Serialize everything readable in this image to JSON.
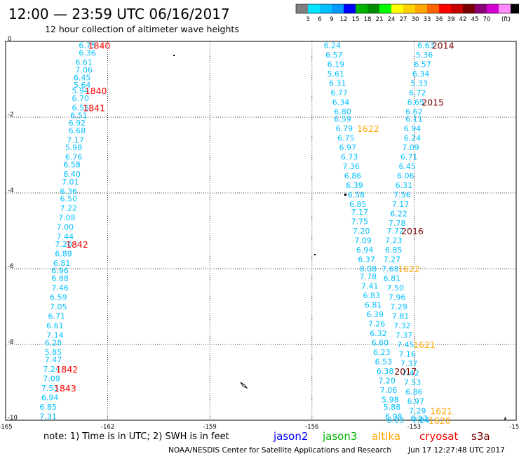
{
  "header": {
    "title": "12:00 — 23:59 UTC 06/16/2017",
    "subtitle": "12 hour collection of altimeter wave heights"
  },
  "legend": {
    "colors": [
      "#808080",
      "#00e5ff",
      "#00bfff",
      "#0099ff",
      "#0000ff",
      "#00b400",
      "#008c00",
      "#00ff00",
      "#ffff00",
      "#ffd200",
      "#ffa500",
      "#ff6400",
      "#ff0000",
      "#c80000",
      "#780000",
      "#8c0078",
      "#d200d2",
      "#ff8cff",
      "#000000"
    ],
    "labels": [
      "3",
      "6",
      "9",
      "12",
      "15",
      "18",
      "21",
      "24",
      "27",
      "30",
      "33",
      "36",
      "39",
      "42",
      "45",
      "70",
      "(ft)"
    ]
  },
  "note": "note:  1) Time is in UTC;  2) SWH is in feet",
  "satellites": [
    {
      "name": "jason2",
      "color": "#0000ff"
    },
    {
      "name": "jason3",
      "color": "#00b400"
    },
    {
      "name": "altika",
      "color": "#ffa500"
    },
    {
      "name": "cryosat",
      "color": "#ff0000"
    },
    {
      "name": "s3a",
      "color": "#780000"
    }
  ],
  "footer": {
    "source": "NOAA/NESDIS Center for Satellite Applications and Research",
    "timestamp": "Jun 17 12:27:48 UTC 2017"
  },
  "chart_data": {
    "type": "scatter",
    "xlim": [
      -165,
      -150
    ],
    "ylim": [
      -10,
      0
    ],
    "x_ticks": [
      -165,
      -162,
      -159,
      -156,
      -153,
      -150
    ],
    "x_tick_labels": [
      "-165",
      "-162",
      "-159",
      "-156",
      "-153",
      "-150"
    ],
    "y_ticks": [
      0,
      -2,
      -4,
      -6,
      -8,
      -10
    ],
    "y_tick_labels": [
      "0",
      "-2",
      "-4",
      "-6",
      "-8",
      "-10"
    ],
    "grid": true,
    "units": "ft",
    "series": [
      {
        "color": "#00bfff",
        "points": [
          {
            "x": -162.6,
            "y": -0.1,
            "v": "6.75"
          },
          {
            "x": -162.6,
            "y": -0.3,
            "v": "6.36"
          },
          {
            "x": -162.7,
            "y": -0.55,
            "v": "6.61"
          },
          {
            "x": -162.7,
            "y": -0.75,
            "v": "7.06"
          },
          {
            "x": -162.75,
            "y": -0.95,
            "v": "6.45"
          },
          {
            "x": -162.75,
            "y": -1.15,
            "v": "5.64"
          },
          {
            "x": -162.8,
            "y": -1.3,
            "v": "5.94"
          },
          {
            "x": -162.8,
            "y": -1.5,
            "v": "6.70"
          },
          {
            "x": -162.8,
            "y": -1.75,
            "v": "6.55"
          },
          {
            "x": -162.85,
            "y": -1.95,
            "v": "6.51"
          },
          {
            "x": -162.9,
            "y": -2.15,
            "v": "6.92"
          },
          {
            "x": -162.9,
            "y": -2.35,
            "v": "6.68"
          },
          {
            "x": -162.95,
            "y": -2.6,
            "v": "7.17"
          },
          {
            "x": -163.0,
            "y": -2.8,
            "v": "5.98"
          },
          {
            "x": -163.0,
            "y": -3.05,
            "v": "6.76"
          },
          {
            "x": -163.05,
            "y": -3.25,
            "v": "6.58"
          },
          {
            "x": -163.05,
            "y": -3.5,
            "v": "6.40"
          },
          {
            "x": -163.1,
            "y": -3.7,
            "v": "7.01"
          },
          {
            "x": -163.15,
            "y": -3.95,
            "v": "6.36"
          },
          {
            "x": -163.15,
            "y": -4.15,
            "v": "6.50"
          },
          {
            "x": -163.15,
            "y": -4.4,
            "v": "7.22"
          },
          {
            "x": -163.2,
            "y": -4.65,
            "v": "7.08"
          },
          {
            "x": -163.25,
            "y": -4.9,
            "v": "7.00"
          },
          {
            "x": -163.25,
            "y": -5.15,
            "v": "7.44"
          },
          {
            "x": -163.3,
            "y": -5.35,
            "v": "7.20"
          },
          {
            "x": -163.3,
            "y": -5.6,
            "v": "6.89"
          },
          {
            "x": -163.35,
            "y": -5.85,
            "v": "6.81"
          },
          {
            "x": -163.4,
            "y": -6.05,
            "v": "6.96"
          },
          {
            "x": -163.4,
            "y": -6.25,
            "v": "6.88"
          },
          {
            "x": -163.4,
            "y": -6.5,
            "v": "7.46"
          },
          {
            "x": -163.45,
            "y": -6.75,
            "v": "6.59"
          },
          {
            "x": -163.45,
            "y": -7.0,
            "v": "7.05"
          },
          {
            "x": -163.5,
            "y": -7.25,
            "v": "6.71"
          },
          {
            "x": -163.55,
            "y": -7.5,
            "v": "6.61"
          },
          {
            "x": -163.55,
            "y": -7.75,
            "v": "7.14"
          },
          {
            "x": -163.6,
            "y": -7.95,
            "v": "6.28"
          },
          {
            "x": -163.6,
            "y": -8.2,
            "v": "5.85"
          },
          {
            "x": -163.6,
            "y": -8.4,
            "v": "7.47"
          },
          {
            "x": -163.65,
            "y": -8.65,
            "v": "7.24"
          },
          {
            "x": -163.65,
            "y": -8.9,
            "v": "7.09"
          },
          {
            "x": -163.7,
            "y": -9.15,
            "v": "7.53"
          },
          {
            "x": -163.7,
            "y": -9.4,
            "v": "6.94"
          },
          {
            "x": -163.75,
            "y": -9.65,
            "v": "6.85"
          },
          {
            "x": -163.75,
            "y": -9.9,
            "v": "7.31"
          },
          {
            "x": -155.4,
            "y": -0.1,
            "v": "6.24"
          },
          {
            "x": -155.35,
            "y": -0.35,
            "v": "6.57"
          },
          {
            "x": -155.3,
            "y": -0.6,
            "v": "6.19"
          },
          {
            "x": -155.3,
            "y": -0.85,
            "v": "5.61"
          },
          {
            "x": -155.25,
            "y": -1.1,
            "v": "6.31"
          },
          {
            "x": -155.2,
            "y": -1.35,
            "v": "6.77"
          },
          {
            "x": -155.15,
            "y": -1.6,
            "v": "6.34"
          },
          {
            "x": -155.1,
            "y": -1.85,
            "v": "6.80"
          },
          {
            "x": -155.1,
            "y": -2.05,
            "v": "6.59"
          },
          {
            "x": -155.05,
            "y": -2.3,
            "v": "6.79"
          },
          {
            "x": -155.0,
            "y": -2.55,
            "v": "6.75"
          },
          {
            "x": -154.95,
            "y": -2.8,
            "v": "6.97"
          },
          {
            "x": -154.9,
            "y": -3.05,
            "v": "6.73"
          },
          {
            "x": -154.85,
            "y": -3.3,
            "v": "7.36"
          },
          {
            "x": -154.8,
            "y": -3.55,
            "v": "6.86"
          },
          {
            "x": -154.75,
            "y": -3.8,
            "v": "6.39"
          },
          {
            "x": -154.7,
            "y": -4.05,
            "v": "6.58"
          },
          {
            "x": -154.65,
            "y": -4.3,
            "v": "6.85"
          },
          {
            "x": -154.6,
            "y": -4.5,
            "v": "7.17"
          },
          {
            "x": -154.6,
            "y": -4.75,
            "v": "7.75"
          },
          {
            "x": -154.55,
            "y": -5.0,
            "v": "7.20"
          },
          {
            "x": -154.5,
            "y": -5.25,
            "v": "7.09"
          },
          {
            "x": -154.45,
            "y": -5.5,
            "v": "6.94"
          },
          {
            "x": -154.4,
            "y": -5.75,
            "v": "6.37"
          },
          {
            "x": -154.35,
            "y": -6.0,
            "v": "8.08"
          },
          {
            "x": -154.35,
            "y": -6.2,
            "v": "7.78"
          },
          {
            "x": -154.3,
            "y": -6.45,
            "v": "7.41"
          },
          {
            "x": -154.25,
            "y": -6.7,
            "v": "6.83"
          },
          {
            "x": -154.2,
            "y": -6.95,
            "v": "6.81"
          },
          {
            "x": -154.15,
            "y": -7.2,
            "v": "6.39"
          },
          {
            "x": -154.1,
            "y": -7.45,
            "v": "7.26"
          },
          {
            "x": -154.05,
            "y": -7.7,
            "v": "6.32"
          },
          {
            "x": -154.0,
            "y": -7.95,
            "v": "6.60"
          },
          {
            "x": -153.95,
            "y": -8.2,
            "v": "6.23"
          },
          {
            "x": -153.9,
            "y": -8.45,
            "v": "6.53"
          },
          {
            "x": -153.85,
            "y": -8.7,
            "v": "6.38"
          },
          {
            "x": -153.8,
            "y": -8.95,
            "v": "7.20"
          },
          {
            "x": -153.75,
            "y": -9.2,
            "v": "7.06"
          },
          {
            "x": -153.7,
            "y": -9.45,
            "v": "5.98"
          },
          {
            "x": -153.65,
            "y": -9.65,
            "v": "5.88"
          },
          {
            "x": -153.6,
            "y": -9.9,
            "v": "6.98"
          },
          {
            "x": -153.55,
            "y": -10.0,
            "v": "6.03"
          },
          {
            "x": -152.65,
            "y": -0.1,
            "v": "6.63"
          },
          {
            "x": -152.7,
            "y": -0.35,
            "v": "5.36"
          },
          {
            "x": -152.75,
            "y": -0.6,
            "v": "6.57"
          },
          {
            "x": -152.8,
            "y": -0.85,
            "v": "6.34"
          },
          {
            "x": -152.85,
            "y": -1.1,
            "v": "5.33"
          },
          {
            "x": -152.9,
            "y": -1.35,
            "v": "6.72"
          },
          {
            "x": -152.95,
            "y": -1.6,
            "v": "6.65"
          },
          {
            "x": -153.0,
            "y": -1.85,
            "v": "6.62"
          },
          {
            "x": -153.0,
            "y": -2.05,
            "v": "6.11"
          },
          {
            "x": -153.05,
            "y": -2.3,
            "v": "6.94"
          },
          {
            "x": -153.05,
            "y": -2.55,
            "v": "6.24"
          },
          {
            "x": -153.1,
            "y": -2.8,
            "v": "7.09"
          },
          {
            "x": -153.15,
            "y": -3.05,
            "v": "6.71"
          },
          {
            "x": -153.2,
            "y": -3.3,
            "v": "6.45"
          },
          {
            "x": -153.25,
            "y": -3.55,
            "v": "6.06"
          },
          {
            "x": -153.3,
            "y": -3.8,
            "v": "6.31"
          },
          {
            "x": -153.35,
            "y": -4.05,
            "v": "7.56"
          },
          {
            "x": -153.4,
            "y": -4.3,
            "v": "7.17"
          },
          {
            "x": -153.45,
            "y": -4.55,
            "v": "6.22"
          },
          {
            "x": -153.5,
            "y": -4.8,
            "v": "7.78"
          },
          {
            "x": -153.55,
            "y": -5.0,
            "v": "7.72"
          },
          {
            "x": -153.6,
            "y": -5.25,
            "v": "7.23"
          },
          {
            "x": -153.6,
            "y": -5.5,
            "v": "6.85"
          },
          {
            "x": -153.65,
            "y": -5.75,
            "v": "7.27"
          },
          {
            "x": -153.7,
            "y": -6.0,
            "v": "7.68"
          },
          {
            "x": -153.65,
            "y": -6.25,
            "v": "6.81"
          },
          {
            "x": -153.55,
            "y": -6.5,
            "v": "7.50"
          },
          {
            "x": -153.5,
            "y": -6.75,
            "v": "7.96"
          },
          {
            "x": -153.45,
            "y": -7.0,
            "v": "7.29"
          },
          {
            "x": -153.4,
            "y": -7.25,
            "v": "7.81"
          },
          {
            "x": -153.35,
            "y": -7.5,
            "v": "7.32"
          },
          {
            "x": -153.3,
            "y": -7.75,
            "v": "7.37"
          },
          {
            "x": -153.25,
            "y": -8.0,
            "v": "7.45"
          },
          {
            "x": -153.2,
            "y": -8.25,
            "v": "7.16"
          },
          {
            "x": -153.15,
            "y": -8.5,
            "v": "7.37"
          },
          {
            "x": -153.1,
            "y": -8.75,
            "v": "7.42"
          },
          {
            "x": -153.05,
            "y": -9.0,
            "v": "7.53"
          },
          {
            "x": -153.0,
            "y": -9.25,
            "v": "6.86"
          },
          {
            "x": -152.95,
            "y": -9.5,
            "v": "6.97"
          },
          {
            "x": -152.9,
            "y": -9.75,
            "v": "7.29"
          },
          {
            "x": -152.85,
            "y": -9.95,
            "v": "6.97"
          },
          {
            "x": -152.8,
            "y": -10.0,
            "v": "7.24"
          }
        ]
      }
    ],
    "time_labels": [
      {
        "x": -162.25,
        "y": -0.1,
        "text": "1840",
        "color": "#ff0000"
      },
      {
        "x": -162.35,
        "y": -1.3,
        "text": "1840",
        "color": "#ff0000"
      },
      {
        "x": -162.4,
        "y": -1.75,
        "text": "1841",
        "color": "#ff0000"
      },
      {
        "x": -162.9,
        "y": -5.35,
        "text": "1842",
        "color": "#ff0000"
      },
      {
        "x": -163.2,
        "y": -8.65,
        "text": "1842",
        "color": "#ff0000"
      },
      {
        "x": -163.25,
        "y": -9.15,
        "text": "1843",
        "color": "#ff0000"
      },
      {
        "x": -152.15,
        "y": -0.1,
        "text": "2014",
        "color": "#780000"
      },
      {
        "x": -152.45,
        "y": -1.6,
        "text": "2015",
        "color": "#780000"
      },
      {
        "x": -154.35,
        "y": -2.3,
        "text": "1622",
        "color": "#ffa500"
      },
      {
        "x": -153.05,
        "y": -5.0,
        "text": "2016",
        "color": "#780000"
      },
      {
        "x": -153.15,
        "y": -6.0,
        "text": "1622",
        "color": "#ffa500"
      },
      {
        "x": -152.7,
        "y": -8.0,
        "text": "1621",
        "color": "#ffa500"
      },
      {
        "x": -153.25,
        "y": -8.7,
        "text": "2017",
        "color": "#780000"
      },
      {
        "x": -152.2,
        "y": -9.75,
        "text": "1621",
        "color": "#ffa500"
      },
      {
        "x": -152.25,
        "y": -10.0,
        "text": "1620",
        "color": "#ffa500"
      }
    ]
  }
}
